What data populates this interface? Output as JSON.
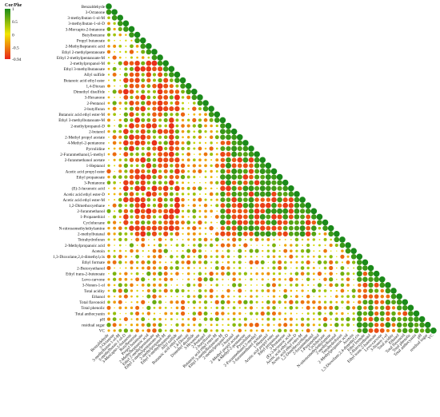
{
  "chart_data": {
    "type": "heatmap",
    "subtype": "lower-triangle correlation bubble matrix",
    "legend": {
      "title": "Cor/Phe",
      "ticks": [
        1,
        0.5,
        0,
        -0.5,
        -0.94
      ],
      "range": [
        -0.94,
        1
      ],
      "colors": {
        "positive": "#1a8a1a",
        "mid": "#f2e600",
        "negative": "#e8231a"
      },
      "placement": "top-left"
    },
    "variables": [
      "Benzaldehyde",
      "3-Octanone",
      "3-methylbutan-1-ol-M",
      "3-methylbutan-1-ol-D",
      "3-Mercapto-2-butanone",
      "Butylbenzene",
      "Propyl butanoate",
      "2-Methylheptanoic acid",
      "Ethyl 2-methylpentanoate",
      "Ethyl 2-methylpentanoate-M",
      "2-methylpropanol-M",
      "Ethyl 3-methylbutanoate",
      "Allyl sulfide",
      "Butanoic acid ethyl ester",
      "1,4-Dioxan",
      "Dimethyl disulfide",
      "3-Hexanone",
      "2-Pentanol",
      "2-butylfuran",
      "Butanoic acid ethyl ester-M",
      "Ethyl 3-methylbutanoate-M",
      "2-methylpropanol-D",
      "2-butanol",
      "2-Methyl propyl acetate",
      "4-Methyl-2-pentanone",
      "Pyrrolidine",
      "2-Furanmethanol,5-methyl",
      "2-furanmethanol acetate",
      "1-Heptanol",
      "Acetic acid propyl ester",
      "Ethyl propanoate",
      "3-Pentanone",
      "(E)-3-hexenoic acid",
      "Acetic acid ethyl ester-D",
      "Acetic acid ethyl ester-M",
      "1,2-Dimethoxyethane",
      "2-furanmethanol",
      "1-Propanethiol",
      "Cyclohexane",
      "N-nitrosomethylethylamine",
      "2-methylbutanal",
      "Tetrahydrofuran",
      "2-Methylpropanoic acid",
      "Acetoin",
      "1,3-Dioxolane,2,4-dimethyl,cis",
      "Ethyl formate",
      "2-Butoxyethanol",
      "Ethyl trans-2-butenoate",
      "Levo-carvone",
      "3-Nonen-1-ol",
      "Total acidity",
      "Ethanol",
      "Total flavonoid",
      "Total phenolic",
      "Total anthocyanin",
      "pH",
      "residual sugar",
      "VC"
    ],
    "values": "pairwise correlation coefficients (lower triangle); diagonal = 1"
  }
}
